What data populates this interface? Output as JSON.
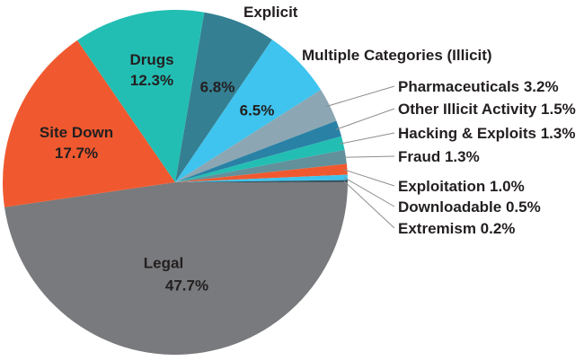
{
  "chart_data": {
    "type": "pie",
    "title": "",
    "unit": "%",
    "start_angle_deg": 9.7,
    "layout": {
      "center": [
        195,
        203
      ],
      "radius": 192,
      "legend_position": "none",
      "label_style": "internal labels for large slices, external callouts with leader lines for small slices",
      "background": "#ffffff"
    },
    "slices": [
      {
        "label": "Explicit",
        "value": 6.8,
        "color": "#347f92"
      },
      {
        "label": "Multiple Categories (Illicit)",
        "value": 6.5,
        "color": "#3ec4ee"
      },
      {
        "label": "Pharmaceuticals",
        "value": 3.2,
        "color": "#8ca7b3"
      },
      {
        "label": "Other Illicit Activity",
        "value": 1.5,
        "color": "#2a81a6"
      },
      {
        "label": "Hacking & Exploits",
        "value": 1.3,
        "color": "#23beb3"
      },
      {
        "label": "Fraud",
        "value": 1.3,
        "color": "#62909b"
      },
      {
        "label": "Exploitation",
        "value": 1.0,
        "color": "#f0592f"
      },
      {
        "label": "Downloadable",
        "value": 0.5,
        "color": "#3ec4ee"
      },
      {
        "label": "Extremism",
        "value": 0.2,
        "color": "#2c4a57"
      },
      {
        "label": "Legal",
        "value": 47.7,
        "color": "#797a7d"
      },
      {
        "label": "Site Down",
        "value": 17.7,
        "color": "#f0592f"
      },
      {
        "label": "Drugs",
        "value": 12.3,
        "color": "#23beb3"
      }
    ]
  },
  "labels": {
    "explicit_name": "Explicit",
    "explicit_value": "6.8%",
    "multiple_name": "Multiple Categories (Illicit)",
    "multiple_value": "6.5%",
    "drugs_name": "Drugs",
    "drugs_value": "12.3%",
    "site_down_name": "Site Down",
    "site_down_value": "17.7%",
    "legal_name": "Legal",
    "legal_value": "47.7%",
    "callouts": [
      {
        "text": "Pharmaceuticals 3.2%"
      },
      {
        "text": "Other Illicit Activity 1.5%"
      },
      {
        "text": "Hacking & Exploits 1.3%"
      },
      {
        "text": "Fraud 1.3%"
      },
      {
        "text": "Exploitation 1.0%"
      },
      {
        "text": "Downloadable 0.5%"
      },
      {
        "text": "Extremism 0.2%"
      }
    ]
  },
  "style": {
    "text_color": "#231f20",
    "leader_line_color": "#8d8d8d"
  }
}
